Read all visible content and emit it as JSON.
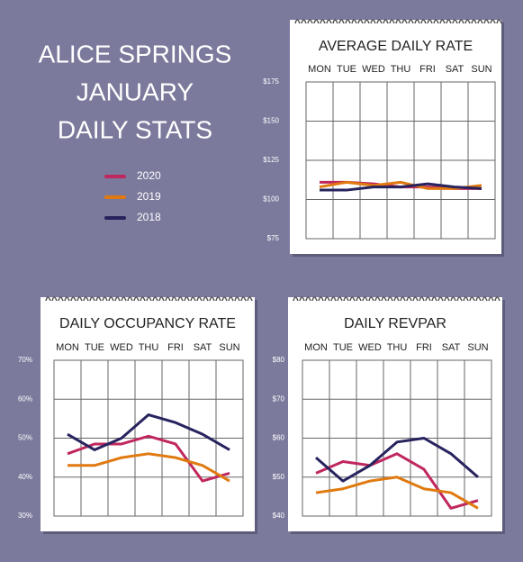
{
  "title": [
    "ALICE SPRINGS",
    "JANUARY",
    "DAILY STATS"
  ],
  "chart_data": [
    {
      "type": "line",
      "title": "AVERAGE DAILY RATE",
      "categories": [
        "MON",
        "TUE",
        "WED",
        "THU",
        "FRI",
        "SAT",
        "SUN"
      ],
      "ylim": [
        75,
        175
      ],
      "yticks": [
        {
          "value": 75,
          "label": "$75"
        },
        {
          "value": 100,
          "label": "$100"
        },
        {
          "value": 125,
          "label": "$125"
        },
        {
          "value": 150,
          "label": "$150"
        },
        {
          "value": 175,
          "label": "$175"
        }
      ],
      "grid": true,
      "series": [
        {
          "name": "2020",
          "color": "#c0275e",
          "values": [
            111,
            111,
            110,
            108,
            108,
            107,
            107
          ]
        },
        {
          "name": "2019",
          "color": "#e07a10",
          "values": [
            108,
            111,
            109,
            111,
            107,
            107,
            109
          ]
        },
        {
          "name": "2018",
          "color": "#27235e",
          "values": [
            106,
            106,
            108,
            108,
            110,
            108,
            107
          ]
        }
      ]
    },
    {
      "type": "line",
      "title": "DAILY OCCUPANCY RATE",
      "categories": [
        "MON",
        "TUE",
        "WED",
        "THU",
        "FRI",
        "SAT",
        "SUN"
      ],
      "ylim": [
        30,
        70
      ],
      "yticks": [
        {
          "value": 30,
          "label": "30%"
        },
        {
          "value": 40,
          "label": "40%"
        },
        {
          "value": 50,
          "label": "50%"
        },
        {
          "value": 60,
          "label": "60%"
        },
        {
          "value": 70,
          "label": "70%"
        }
      ],
      "grid": true,
      "series": [
        {
          "name": "2020",
          "color": "#c0275e",
          "values": [
            46,
            48.5,
            48.5,
            50.5,
            48.5,
            39,
            41
          ]
        },
        {
          "name": "2019",
          "color": "#e07a10",
          "values": [
            43,
            43,
            45,
            46,
            45,
            43,
            39
          ]
        },
        {
          "name": "2018",
          "color": "#27235e",
          "values": [
            51,
            47,
            50,
            56,
            54,
            51,
            47
          ]
        }
      ]
    },
    {
      "type": "line",
      "title": "DAILY REVPAR",
      "categories": [
        "MON",
        "TUE",
        "WED",
        "THU",
        "FRI",
        "SAT",
        "SUN"
      ],
      "ylim": [
        40,
        80
      ],
      "yticks": [
        {
          "value": 40,
          "label": "$40"
        },
        {
          "value": 50,
          "label": "$50"
        },
        {
          "value": 60,
          "label": "$60"
        },
        {
          "value": 70,
          "label": "$70"
        },
        {
          "value": 80,
          "label": "$80"
        }
      ],
      "grid": true,
      "series": [
        {
          "name": "2020",
          "color": "#c0275e",
          "values": [
            51,
            54,
            53,
            56,
            52,
            42,
            44
          ]
        },
        {
          "name": "2019",
          "color": "#e07a10",
          "values": [
            46,
            47,
            49,
            50,
            47,
            46,
            42
          ]
        },
        {
          "name": "2018",
          "color": "#27235e",
          "values": [
            55,
            49,
            53,
            59,
            60,
            56,
            50
          ]
        }
      ]
    }
  ]
}
